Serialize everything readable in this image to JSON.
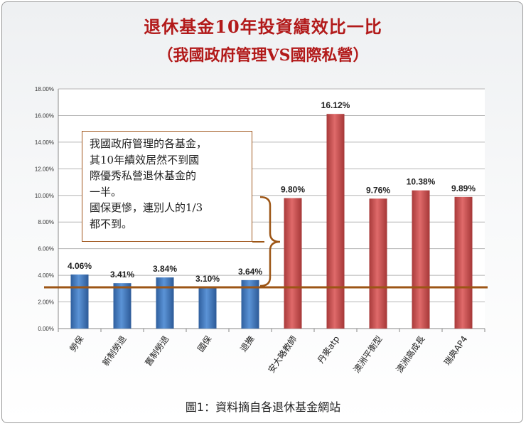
{
  "title": "退休基金10年投資績效比一比",
  "subtitle": "（我國政府管理VS國際私營）",
  "callout": {
    "lines": [
      "我國政府管理的各基金，",
      "其10年績效居然不到國",
      "際優秀私營退休基金的",
      "一半。",
      "國保更慘，連別人的1/3",
      "都不到。"
    ]
  },
  "caption": "圖1：資料摘自各退休基金網站",
  "colors": {
    "title": "#b21a1a",
    "blue_bar": "#3f78c4",
    "red_bar": "#cc4c4c",
    "reference_line": "#9c5515"
  },
  "chart_data": {
    "type": "bar",
    "title": "退休基金10年投資績效比一比",
    "subtitle": "（我國政府管理VS國際私營）",
    "categories": [
      "勞保",
      "新制勞退",
      "舊制勞退",
      "國保",
      "退撫",
      "安大略教師",
      "丹麥atp",
      "澳洲平衡型",
      "澳洲高成長",
      "瑞典AP4"
    ],
    "values": [
      4.06,
      3.41,
      3.84,
      3.1,
      3.64,
      9.8,
      16.12,
      9.76,
      10.38,
      9.89
    ],
    "value_labels": [
      "4.06%",
      "3.41%",
      "3.84%",
      "3.10%",
      "3.64%",
      "9.80%",
      "16.12%",
      "9.76%",
      "10.38%",
      "9.89%"
    ],
    "bar_groups": [
      "blue",
      "blue",
      "blue",
      "blue",
      "blue",
      "red",
      "red",
      "red",
      "red",
      "red"
    ],
    "yticks": [
      0,
      2,
      4,
      6,
      8,
      10,
      12,
      14,
      16,
      18
    ],
    "ytick_labels": [
      "0.00%",
      "2.00%",
      "4.00%",
      "6.00%",
      "8.00%",
      "10.00%",
      "12.00%",
      "14.00%",
      "16.00%",
      "18.00%"
    ],
    "ylim": [
      0,
      18
    ],
    "reference_line_value": 3.1,
    "grid": true,
    "xlabel": "",
    "ylabel": ""
  }
}
